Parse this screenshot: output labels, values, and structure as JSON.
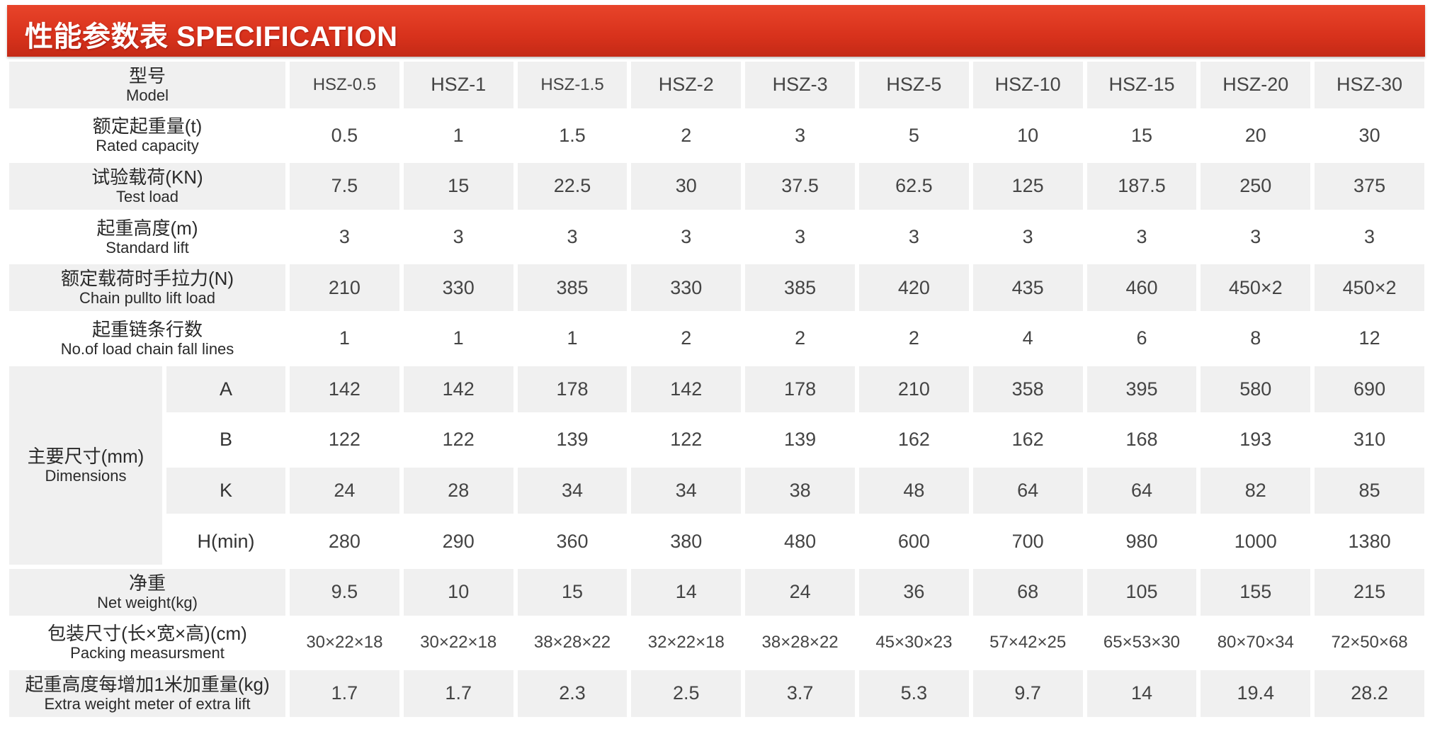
{
  "title": "性能参数表 SPECIFICATION",
  "rows": [
    {
      "cn": "型号",
      "en": "Model",
      "values": [
        "HSZ-0.5",
        "HSZ-1",
        "HSZ-1.5",
        "HSZ-2",
        "HSZ-3",
        "HSZ-5",
        "HSZ-10",
        "HSZ-15",
        "HSZ-20",
        "HSZ-30"
      ]
    },
    {
      "cn": "额定起重量(t)",
      "en": "Rated capacity",
      "values": [
        "0.5",
        "1",
        "1.5",
        "2",
        "3",
        "5",
        "10",
        "15",
        "20",
        "30"
      ]
    },
    {
      "cn": "试验载荷(KN)",
      "en": "Test load",
      "values": [
        "7.5",
        "15",
        "22.5",
        "30",
        "37.5",
        "62.5",
        "125",
        "187.5",
        "250",
        "375"
      ]
    },
    {
      "cn": "起重高度(m)",
      "en": "Standard lift",
      "values": [
        "3",
        "3",
        "3",
        "3",
        "3",
        "3",
        "3",
        "3",
        "3",
        "3"
      ]
    },
    {
      "cn": "额定载荷时手拉力(N)",
      "en": "Chain pullto lift load",
      "values": [
        "210",
        "330",
        "385",
        "330",
        "385",
        "420",
        "435",
        "460",
        "450×2",
        "450×2"
      ]
    },
    {
      "cn": "起重链条行数",
      "en": "No.of load chain fall lines",
      "values": [
        "1",
        "1",
        "1",
        "2",
        "2",
        "2",
        "4",
        "6",
        "8",
        "12"
      ]
    }
  ],
  "dimensions": {
    "cn": "主要尺寸(mm)",
    "en": "Dimensions",
    "rows": [
      {
        "label": "A",
        "values": [
          "142",
          "142",
          "178",
          "142",
          "178",
          "210",
          "358",
          "395",
          "580",
          "690"
        ]
      },
      {
        "label": "B",
        "values": [
          "122",
          "122",
          "139",
          "122",
          "139",
          "162",
          "162",
          "168",
          "193",
          "310"
        ]
      },
      {
        "label": "K",
        "values": [
          "24",
          "28",
          "34",
          "34",
          "38",
          "48",
          "64",
          "64",
          "82",
          "85"
        ]
      },
      {
        "label": "H(min)",
        "values": [
          "280",
          "290",
          "360",
          "380",
          "480",
          "600",
          "700",
          "980",
          "1000",
          "1380"
        ]
      }
    ]
  },
  "rows_after": [
    {
      "cn": "净重",
      "en": "Net weight(kg)",
      "values": [
        "9.5",
        "10",
        "15",
        "14",
        "24",
        "36",
        "68",
        "105",
        "155",
        "215"
      ]
    },
    {
      "cn": "包装尺寸(长×宽×高)(cm)",
      "en": "Packing measursment",
      "values": [
        "30×22×18",
        "30×22×18",
        "38×28×22",
        "32×22×18",
        "38×28×22",
        "45×30×23",
        "57×42×25",
        "65×53×30",
        "80×70×34",
        "72×50×68"
      ]
    },
    {
      "cn": "起重高度每增加1米加重量(kg)",
      "en": "Extra weight meter of extra lift",
      "values": [
        "1.7",
        "1.7",
        "2.3",
        "2.5",
        "3.7",
        "5.3",
        "9.7",
        "14",
        "19.4",
        "28.2"
      ]
    }
  ],
  "colors": {
    "banner": "#d8321c",
    "cell_shade": "#f0f0f0"
  }
}
